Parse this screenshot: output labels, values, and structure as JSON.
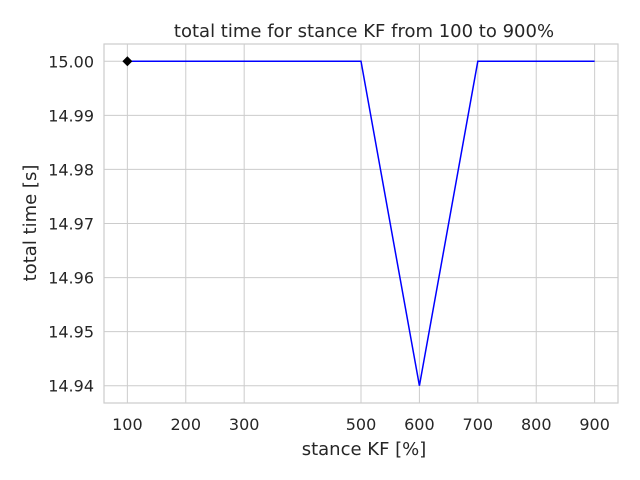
{
  "chart_data": {
    "type": "line",
    "title": "total time for stance KF from 100 to 900%",
    "xlabel": "stance KF [%]",
    "ylabel": "total time [s]",
    "x": [
      100,
      200,
      300,
      500,
      600,
      700,
      800,
      900
    ],
    "x_tick_labels": [
      "100",
      "200",
      "300",
      "500",
      "600",
      "700",
      "800",
      "900"
    ],
    "y_tick_values": [
      14.94,
      14.95,
      14.96,
      14.97,
      14.98,
      14.99,
      15.0
    ],
    "y_tick_labels": [
      "14.94",
      "14.95",
      "14.96",
      "14.97",
      "14.98",
      "14.99",
      "15.00"
    ],
    "xlim": [
      60,
      940
    ],
    "ylim": [
      14.9368,
      15.0032
    ],
    "grid": true,
    "series": [
      {
        "values": [
          15.0,
          15.0,
          15.0,
          15.0,
          14.94,
          15.0,
          15.0,
          15.0
        ],
        "color": "#0000ff"
      }
    ],
    "marker": {
      "x": 100,
      "y": 15.0,
      "shape": "diamond",
      "color": "#000000"
    }
  }
}
